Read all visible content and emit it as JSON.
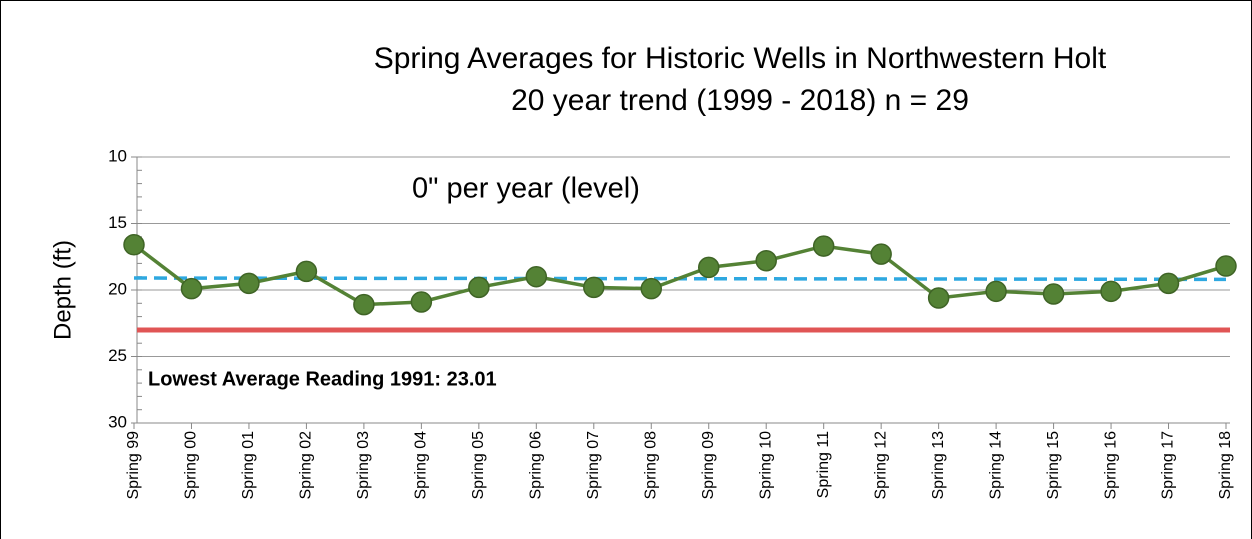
{
  "chart_data": {
    "type": "line",
    "title": "Spring Averages for Historic Wells in Northwestern Holt",
    "subtitle": "20 year trend (1999 - 2018)  n = 29",
    "y_label": "Depth (ft)",
    "categories": [
      "Spring 99",
      "Spring 00",
      "Spring 01",
      "Spring 02",
      "Spring 03",
      "Spring 04",
      "Spring 05",
      "Spring 06",
      "Spring 07",
      "Spring 08",
      "Spring 09",
      "Spring 10",
      "Spring 11",
      "Spring 12",
      "Spring 13",
      "Spring 14",
      "Spring 15",
      "Spring 16",
      "Spring 17",
      "Spring 18"
    ],
    "values": [
      16.6,
      19.9,
      19.5,
      18.6,
      21.1,
      20.9,
      19.8,
      19.0,
      19.8,
      19.9,
      18.3,
      17.8,
      16.7,
      17.3,
      20.6,
      20.1,
      20.3,
      20.1,
      19.5,
      18.2
    ],
    "color": "#548235",
    "ylim": [
      10,
      30
    ],
    "yticks": [
      10,
      15,
      20,
      25,
      30
    ],
    "y_inverted": true,
    "grid": true,
    "trend": {
      "values": [
        19.1,
        19.2
      ],
      "color": "#2ea8e0",
      "annotation": "0\" per year (level)"
    },
    "reference_line": {
      "value": 23.01,
      "color": "#e05555",
      "annotation": "Lowest Average Reading 1991: 23.01"
    }
  }
}
